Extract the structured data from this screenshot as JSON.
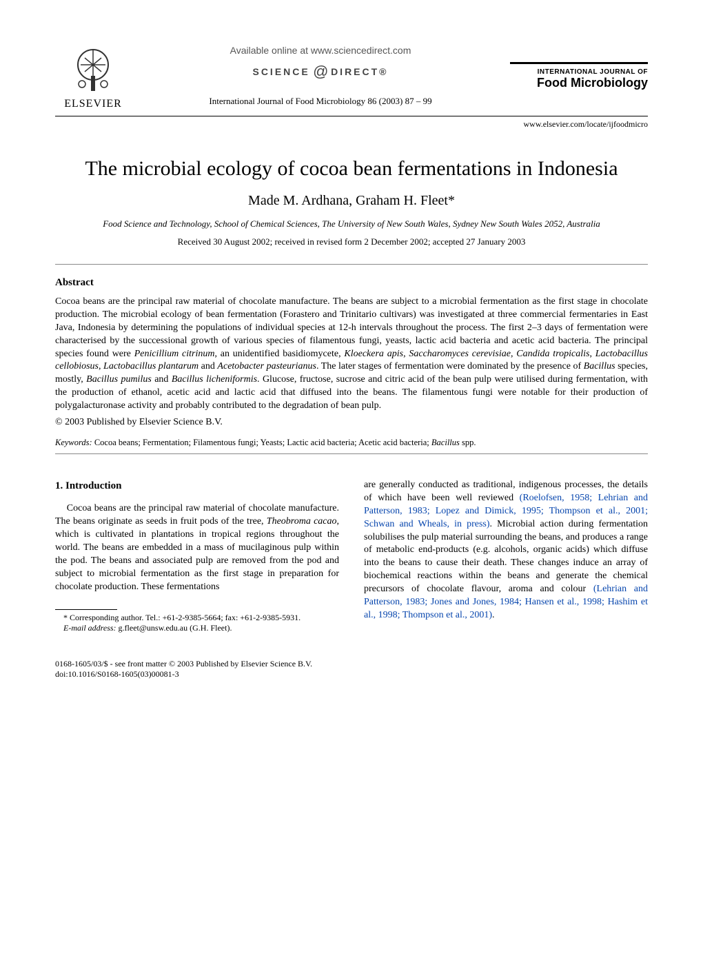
{
  "header": {
    "publisher": "ELSEVIER",
    "available_online": "Available online at www.sciencedirect.com",
    "science_direct_left": "SCIENCE",
    "science_direct_right": "DIRECT®",
    "journal_ref": "International Journal of Food Microbiology 86 (2003) 87 – 99",
    "journal_brand_line1": "INTERNATIONAL JOURNAL OF",
    "journal_brand_line2": "Food Microbiology",
    "locate_url": "www.elsevier.com/locate/ijfoodmicro"
  },
  "title": "The microbial ecology of cocoa bean fermentations in Indonesia",
  "authors": "Made M. Ardhana, Graham H. Fleet*",
  "affiliation": "Food Science and Technology, School of Chemical Sciences, The University of New South Wales, Sydney New South Wales 2052, Australia",
  "dates": "Received 30 August 2002; received in revised form 2 December 2002; accepted 27 January 2003",
  "abstract": {
    "heading": "Abstract",
    "body_html": "Cocoa beans are the principal raw material of chocolate manufacture. The beans are subject to a microbial fermentation as the first stage in chocolate production. The microbial ecology of bean fermentation (Forastero and Trinitario cultivars) was investigated at three commercial fermentaries in East Java, Indonesia by determining the populations of individual species at 12-h intervals throughout the process. The first 2–3 days of fermentation were characterised by the successional growth of various species of filamentous fungi, yeasts, lactic acid bacteria and acetic acid bacteria. The principal species found were <i>Penicillium citrinum</i>, an unidentified basidiomycete, <i>Kloeckera apis</i>, <i>Saccharomyces cerevisiae</i>, <i>Candida tropicalis</i>, <i>Lactobacillus cellobiosus</i>, <i>Lactobacillus plantarum</i> and <i>Acetobacter pasteurianus</i>. The later stages of fermentation were dominated by the presence of <i>Bacillus</i> species, mostly, <i>Bacillus pumilus</i> and <i>Bacillus licheniformis</i>. Glucose, fructose, sucrose and citric acid of the bean pulp were utilised during fermentation, with the production of ethanol, acetic acid and lactic acid that diffused into the beans. The filamentous fungi were notable for their production of polygalacturonase activity and probably contributed to the degradation of bean pulp.",
    "copyright": "© 2003 Published by Elsevier Science B.V."
  },
  "keywords": {
    "label": "Keywords:",
    "body_html": "Cocoa beans; Fermentation; Filamentous fungi; Yeasts; Lactic acid bacteria; Acetic acid bacteria; <i>Bacillus</i> spp."
  },
  "introduction": {
    "heading": "1. Introduction",
    "left_html": "Cocoa beans are the principal raw material of chocolate manufacture. The beans originate as seeds in fruit pods of the tree, <i>Theobroma cacao</i>, which is cultivated in plantations in tropical regions throughout the world. The beans are embedded in a mass of mucilaginous pulp within the pod. The beans and associated pulp are removed from the pod and subject to microbial fermentation as the first stage in preparation for chocolate production. These fermentations",
    "right_html": "are generally conducted as traditional, indigenous processes, the details of which have been well reviewed <a class=\"ref\" href=\"#\">(Roelofsen, 1958; Lehrian and Patterson, 1983; Lopez and Dimick, 1995; Thompson et al., 2001; Schwan and Wheals, in press)</a>. Microbial action during fermentation solubilises the pulp material surrounding the beans, and produces a range of metabolic end-products (e.g. alcohols, organic acids) which diffuse into the beans to cause their death. These changes induce an array of biochemical reactions within the beans and generate the chemical precursors of chocolate flavour, aroma and colour <a class=\"ref\" href=\"#\">(Lehrian and Patterson, 1983; Jones and Jones, 1984; Hansen et al., 1998; Hashim et al., 1998; Thompson et al., 2001)</a>."
  },
  "footnotes": {
    "corresponding": "* Corresponding author. Tel.: +61-2-9385-5664; fax: +61-2-9385-5931.",
    "email_label": "E-mail address:",
    "email_value": "g.fleet@unsw.edu.au (G.H. Fleet)."
  },
  "doi": {
    "line1": "0168-1605/03/$ - see front matter © 2003 Published by Elsevier Science B.V.",
    "line2": "doi:10.1016/S0168-1605(03)00081-3"
  },
  "colors": {
    "link": "#0645ad",
    "rule": "#888888",
    "text": "#000000",
    "background": "#ffffff"
  }
}
